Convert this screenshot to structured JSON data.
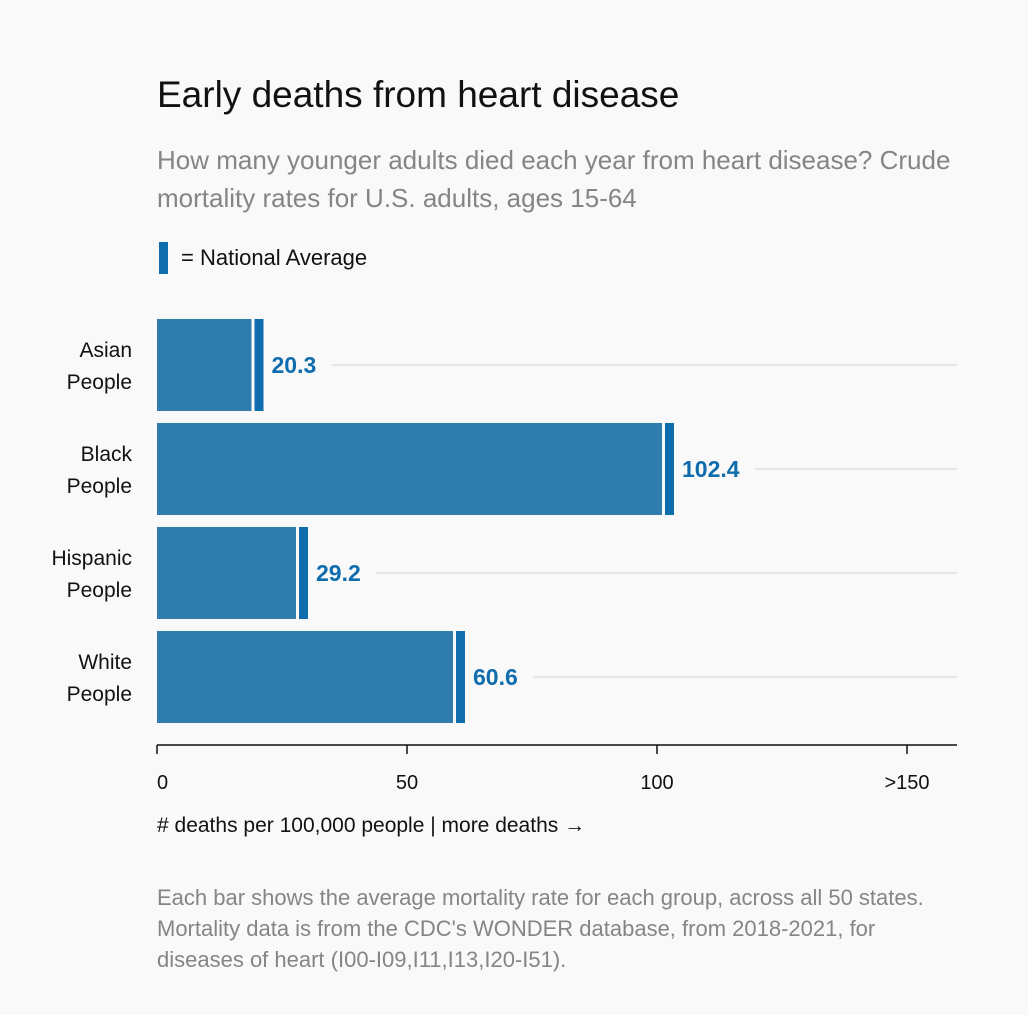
{
  "chart_data": {
    "type": "bar",
    "orientation": "horizontal",
    "title": "Early deaths from heart disease",
    "subtitle": "How many younger adults died each year from heart disease? Crude mortality rates for U.S. adults, ages 15-64",
    "legend": "= National Average",
    "categories": [
      "Asian\nPeople",
      "Black\nPeople",
      "Hispanic\nPeople",
      "White\nPeople"
    ],
    "values": [
      20.3,
      102.4,
      29.2,
      60.6
    ],
    "value_labels": [
      "20.3",
      "102.4",
      "29.2",
      "60.6"
    ],
    "xlim": [
      0,
      160
    ],
    "xticks": [
      0,
      50,
      100,
      150
    ],
    "xtick_labels": [
      "0",
      "50",
      "100",
      ">150"
    ],
    "xlabel": "# deaths per 100,000 people   |   more deaths →",
    "footnote": "Each bar shows the average mortality rate for each group, across all 50 states. Mortality data is from the CDC's WONDER database, from 2018-2021, for diseases of heart (I00-I09,I11,I13,I20-I51).",
    "colors": {
      "bar": "#2f7caf",
      "marker": "#0f6cad",
      "value_text": "#0f6cad",
      "gridline": "#e1e1e1"
    }
  }
}
